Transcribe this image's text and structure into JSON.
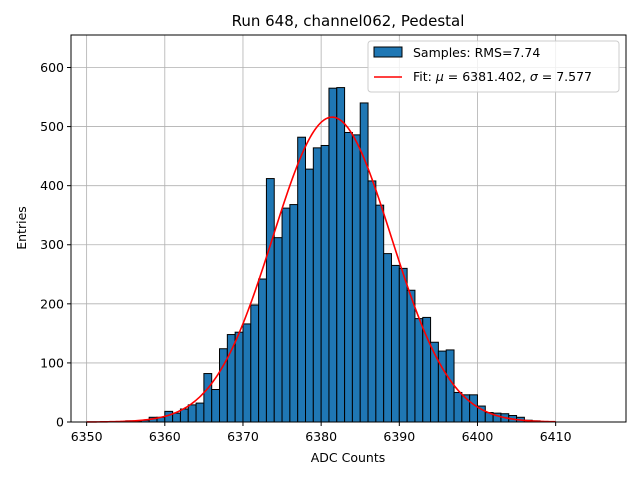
{
  "chart_data": {
    "type": "bar",
    "title": "Run 648, channel062, Pedestal",
    "xlabel": "ADC Counts",
    "ylabel": "Entries",
    "xlim": [
      6348,
      6419
    ],
    "ylim": [
      0,
      655
    ],
    "xticks": [
      6350,
      6360,
      6370,
      6380,
      6390,
      6400,
      6410
    ],
    "yticks": [
      0,
      100,
      200,
      300,
      400,
      500,
      600
    ],
    "grid": true,
    "legend_placement": "top-right",
    "bar_color": "#1f77b4",
    "fit_color": "#ff0000",
    "histogram": {
      "name": "Samples: RMS=7.74",
      "bin_start": 6350,
      "bin_width": 1,
      "counts": [
        0,
        0,
        0,
        0,
        0,
        2,
        1,
        3,
        8,
        8,
        18,
        15,
        22,
        29,
        32,
        82,
        55,
        124,
        148,
        152,
        166,
        198,
        242,
        412,
        312,
        362,
        368,
        482,
        428,
        464,
        468,
        565,
        566,
        490,
        486,
        540,
        408,
        367,
        285,
        265,
        260,
        223,
        175,
        177,
        135,
        120,
        122,
        50,
        46,
        46,
        27,
        16,
        15,
        14,
        11,
        8,
        3,
        2,
        0,
        0
      ]
    },
    "fit": {
      "name": "Fit: μ = 6381.402, σ = 7.577",
      "name_prefix": "Fit: ",
      "mu_symbol": "μ",
      "mu_text": " = 6381.402, ",
      "sigma_symbol": "σ",
      "sigma_text": " = 7.577",
      "mu": 6381.402,
      "sigma": 7.577,
      "amplitude": 516,
      "x_range": [
        6350,
        6410
      ]
    }
  }
}
